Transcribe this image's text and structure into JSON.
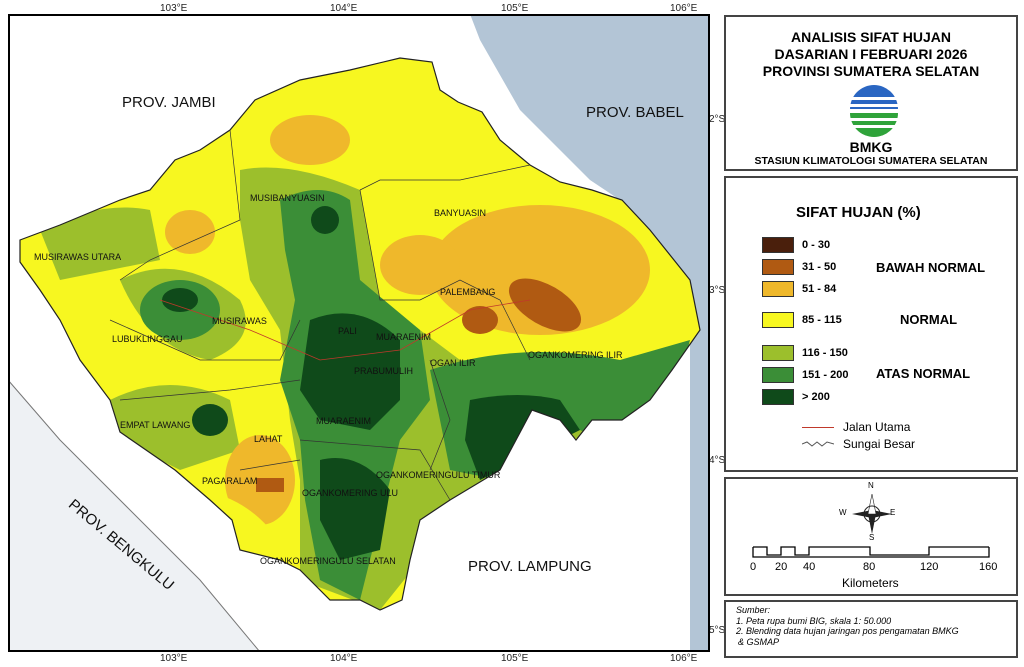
{
  "map": {
    "lon_ticks": [
      "103°E",
      "104°E",
      "105°E",
      "106°E"
    ],
    "lat_ticks": [
      "2°S",
      "3°S",
      "4°S",
      "5°S"
    ],
    "neighbors": [
      "PROV. JAMBI",
      "PROV. BABEL",
      "PROV. BENGKULU",
      "PROV. LAMPUNG"
    ],
    "regions": [
      "MUSIBANYUASIN",
      "BANYUASIN",
      "MUSIRAWAS UTARA",
      "MUSIRAWAS",
      "LUBUKLINGGAU",
      "PALEMBANG",
      "PALI",
      "MUARAENIM",
      "OGAN ILIR",
      "OGANKOMERING ILIR",
      "PRABUMULIH",
      "EMPAT LAWANG",
      "LAHAT",
      "MUARAENIM",
      "PAGARALAM",
      "OGANKOMERING ULU",
      "OGANKOMERINGULU TIMUR",
      "OGANKOMERINGULU SELATAN"
    ]
  },
  "header": {
    "title_lines": [
      "ANALISIS SIFAT HUJAN",
      "DASARIAN I FEBRUARI 2026",
      "PROVINSI SUMATERA SELATAN"
    ],
    "logo_text": "BMKG",
    "station": "STASIUN KLIMATOLOGI SUMATERA SELATAN"
  },
  "legend": {
    "title": "SIFAT HUJAN (%)",
    "classes": [
      {
        "label": "0 - 30",
        "color": "#4a1f0c"
      },
      {
        "label": "31 - 50",
        "color": "#b05a12"
      },
      {
        "label": "51 - 84",
        "color": "#efb82b"
      },
      {
        "label": "85 - 115",
        "color": "#f7f720"
      },
      {
        "label": "116 - 150",
        "color": "#9cbf2c"
      },
      {
        "label": "151 - 200",
        "color": "#3b8e37"
      },
      {
        "label": "> 200",
        "color": "#0f4a1a"
      }
    ],
    "groups": [
      "BAWAH NORMAL",
      "NORMAL",
      "ATAS NORMAL"
    ],
    "lines": [
      {
        "label": "Jalan Utama",
        "color": "#c0392b"
      },
      {
        "label": "Sungai Besar",
        "color": "#555555"
      }
    ]
  },
  "scale": {
    "ticks": [
      "0",
      "20",
      "40",
      "80",
      "120",
      "160"
    ],
    "unit": "Kilometers",
    "compass": [
      "N",
      "S",
      "E",
      "W"
    ]
  },
  "source": {
    "heading": "Sumber:",
    "items": [
      "1. Peta rupa bumi BIG, skala 1: 50.000",
      "2. Blending data hujan jaringan pos pengamatan BMKG",
      "& GSMAP"
    ]
  }
}
